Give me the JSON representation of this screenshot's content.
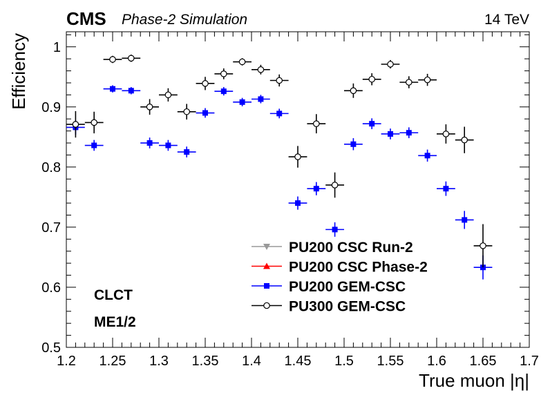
{
  "chart_data": {
    "type": "scatter",
    "experiment_label": "CMS",
    "subtitle": "Phase-2 Simulation",
    "energy_label": "14 TeV",
    "xlabel": "True muon |η|",
    "ylabel": "Efficiency",
    "xlim": [
      1.2,
      1.7
    ],
    "ylim": [
      0.5,
      1.025
    ],
    "x_ticks": [
      "1.2",
      "1.25",
      "1.3",
      "1.35",
      "1.4",
      "1.45",
      "1.5",
      "1.55",
      "1.6",
      "1.65",
      "1.7"
    ],
    "x_tick_values": [
      1.2,
      1.25,
      1.3,
      1.35,
      1.4,
      1.45,
      1.5,
      1.55,
      1.6,
      1.65,
      1.7
    ],
    "y_ticks": [
      "0.5",
      "0.6",
      "0.7",
      "0.8",
      "0.9",
      "1"
    ],
    "y_tick_values": [
      0.5,
      0.6,
      0.7,
      0.8,
      0.9,
      1.0
    ],
    "annotations": [
      "CLCT",
      "ME1/2"
    ],
    "legend_position": "bottom-right",
    "series": [
      {
        "name": "PU200 CSC Run-2",
        "color": "#999999",
        "marker": "triangle-down",
        "points": []
      },
      {
        "name": "PU200 CSC Phase-2",
        "color": "#ff0000",
        "marker": "triangle-up",
        "points": []
      },
      {
        "name": "PU200 GEM-CSC",
        "color": "#0000ff",
        "marker": "square",
        "x_err": 0.01,
        "points": [
          {
            "x": 1.21,
            "y": 0.866,
            "err": 0.012
          },
          {
            "x": 1.23,
            "y": 0.836,
            "err": 0.009
          },
          {
            "x": 1.25,
            "y": 0.93,
            "err": 0.006
          },
          {
            "x": 1.27,
            "y": 0.927,
            "err": 0.006
          },
          {
            "x": 1.29,
            "y": 0.84,
            "err": 0.009
          },
          {
            "x": 1.31,
            "y": 0.836,
            "err": 0.009
          },
          {
            "x": 1.33,
            "y": 0.825,
            "err": 0.009
          },
          {
            "x": 1.35,
            "y": 0.89,
            "err": 0.008
          },
          {
            "x": 1.37,
            "y": 0.926,
            "err": 0.007
          },
          {
            "x": 1.39,
            "y": 0.908,
            "err": 0.007
          },
          {
            "x": 1.41,
            "y": 0.913,
            "err": 0.007
          },
          {
            "x": 1.43,
            "y": 0.889,
            "err": 0.008
          },
          {
            "x": 1.45,
            "y": 0.74,
            "err": 0.011
          },
          {
            "x": 1.47,
            "y": 0.764,
            "err": 0.011
          },
          {
            "x": 1.49,
            "y": 0.696,
            "err": 0.012
          },
          {
            "x": 1.51,
            "y": 0.838,
            "err": 0.01
          },
          {
            "x": 1.53,
            "y": 0.872,
            "err": 0.009
          },
          {
            "x": 1.55,
            "y": 0.855,
            "err": 0.009
          },
          {
            "x": 1.57,
            "y": 0.857,
            "err": 0.009
          },
          {
            "x": 1.59,
            "y": 0.819,
            "err": 0.01
          },
          {
            "x": 1.61,
            "y": 0.764,
            "err": 0.012
          },
          {
            "x": 1.63,
            "y": 0.712,
            "err": 0.015
          },
          {
            "x": 1.65,
            "y": 0.633,
            "err": 0.02
          }
        ]
      },
      {
        "name": "PU300 GEM-CSC",
        "color": "#000000",
        "marker": "open-circle",
        "x_err": 0.01,
        "points": [
          {
            "x": 1.21,
            "y": 0.871,
            "err": 0.022
          },
          {
            "x": 1.23,
            "y": 0.874,
            "err": 0.018
          },
          {
            "x": 1.25,
            "y": 0.979,
            "err": 0.006
          },
          {
            "x": 1.27,
            "y": 0.981,
            "err": 0.006
          },
          {
            "x": 1.29,
            "y": 0.9,
            "err": 0.013
          },
          {
            "x": 1.31,
            "y": 0.92,
            "err": 0.011
          },
          {
            "x": 1.33,
            "y": 0.892,
            "err": 0.013
          },
          {
            "x": 1.35,
            "y": 0.939,
            "err": 0.011
          },
          {
            "x": 1.37,
            "y": 0.955,
            "err": 0.009
          },
          {
            "x": 1.39,
            "y": 0.975,
            "err": 0.006
          },
          {
            "x": 1.41,
            "y": 0.962,
            "err": 0.008
          },
          {
            "x": 1.43,
            "y": 0.944,
            "err": 0.01
          },
          {
            "x": 1.45,
            "y": 0.817,
            "err": 0.018
          },
          {
            "x": 1.47,
            "y": 0.872,
            "err": 0.016
          },
          {
            "x": 1.49,
            "y": 0.77,
            "err": 0.021
          },
          {
            "x": 1.51,
            "y": 0.927,
            "err": 0.012
          },
          {
            "x": 1.53,
            "y": 0.946,
            "err": 0.01
          },
          {
            "x": 1.55,
            "y": 0.971,
            "err": 0.007
          },
          {
            "x": 1.57,
            "y": 0.941,
            "err": 0.01
          },
          {
            "x": 1.59,
            "y": 0.945,
            "err": 0.01
          },
          {
            "x": 1.61,
            "y": 0.855,
            "err": 0.016
          },
          {
            "x": 1.63,
            "y": 0.845,
            "err": 0.022
          },
          {
            "x": 1.65,
            "y": 0.669,
            "err": 0.036
          }
        ]
      }
    ]
  }
}
